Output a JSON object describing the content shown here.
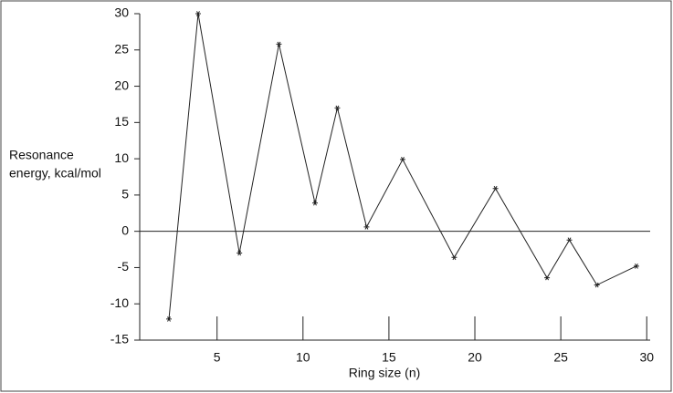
{
  "chart_data": {
    "type": "line",
    "x_label": "Ring size (n)",
    "y_label": [
      "Resonance",
      "energy, kcal/mol"
    ],
    "x": [
      2.2,
      3.9,
      6.3,
      8.6,
      10.7,
      12.0,
      13.7,
      15.8,
      18.8,
      21.2,
      24.2,
      25.5,
      27.1,
      29.4
    ],
    "series": [
      {
        "color": "#222222",
        "values": [
          -12.1,
          30,
          -3,
          25.8,
          3.9,
          17,
          0.6,
          9.9,
          -3.6,
          5.9,
          -6.4,
          -1.2,
          -7.4,
          -4.8
        ]
      }
    ],
    "xlim": [
      0.5,
      30.2
    ],
    "xticks": [
      5,
      10,
      15,
      20,
      25,
      30
    ],
    "ylim": [
      -15,
      30
    ],
    "yticks": [
      30,
      25,
      20,
      15,
      10,
      5,
      0,
      -5,
      -10,
      -15
    ],
    "hline": 0,
    "grid": false,
    "marker": "star"
  }
}
